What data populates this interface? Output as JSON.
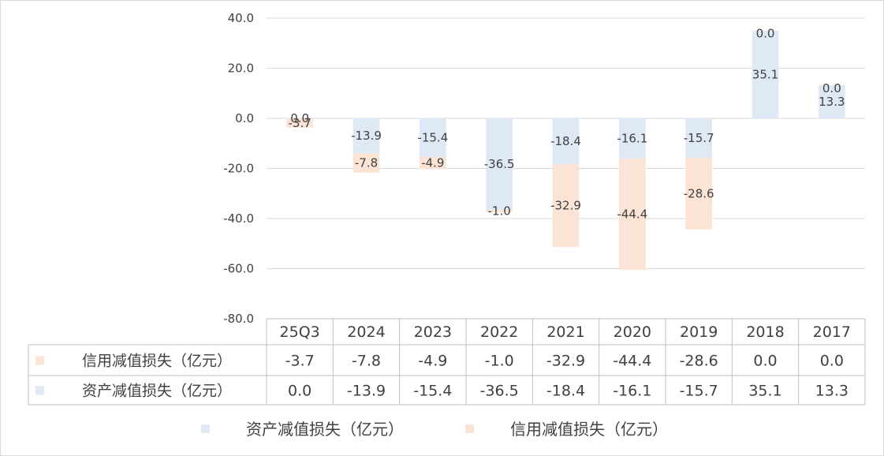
{
  "chart_data": {
    "type": "bar",
    "stacked": true,
    "categories": [
      "25Q3",
      "2024",
      "2023",
      "2022",
      "2021",
      "2020",
      "2019",
      "2018",
      "2017"
    ],
    "series": [
      {
        "name": "资产减值损失（亿元）",
        "color": "#dfe9f5",
        "values": [
          0.0,
          -13.9,
          -15.4,
          -36.5,
          -18.4,
          -16.1,
          -15.7,
          35.1,
          13.3
        ]
      },
      {
        "name": "信用减值损失（亿元）",
        "color": "#fbe3d6",
        "values": [
          -3.7,
          -7.8,
          -4.9,
          -1.0,
          -32.9,
          -44.4,
          -28.6,
          0.0,
          0.0
        ]
      }
    ],
    "ylim": [
      -80,
      40
    ],
    "y_ticks": [
      "40.0",
      "20.0",
      "0.0",
      "-20.0",
      "-40.0",
      "-60.0",
      "-80.0"
    ],
    "data_table": {
      "rows": [
        {
          "name": "信用减值损失（亿元）",
          "values": [
            "-3.7",
            "-7.8",
            "-4.9",
            "-1.0",
            "-32.9",
            "-44.4",
            "-28.6",
            "0.0",
            "0.0"
          ]
        },
        {
          "name": "资产减值损失（亿元）",
          "values": [
            "0.0",
            "-13.9",
            "-15.4",
            "-36.5",
            "-18.4",
            "-16.1",
            "-15.7",
            "35.1",
            "13.3"
          ]
        }
      ]
    },
    "data_labels": {
      "asset": [
        "0.0",
        "-13.9",
        "-15.4",
        "-36.5",
        "-18.4",
        "-16.1",
        "-15.7",
        "35.1",
        "13.3"
      ],
      "credit": [
        "-3.7",
        "-7.8",
        "-4.9",
        "-1.0",
        "-32.9",
        "-44.4",
        "-28.6",
        "0.0",
        "0.0"
      ]
    },
    "legend": {
      "position": "bottom",
      "items": [
        "资产减值损失（亿元）",
        "信用减值损失（亿元）"
      ]
    },
    "grid": true
  }
}
